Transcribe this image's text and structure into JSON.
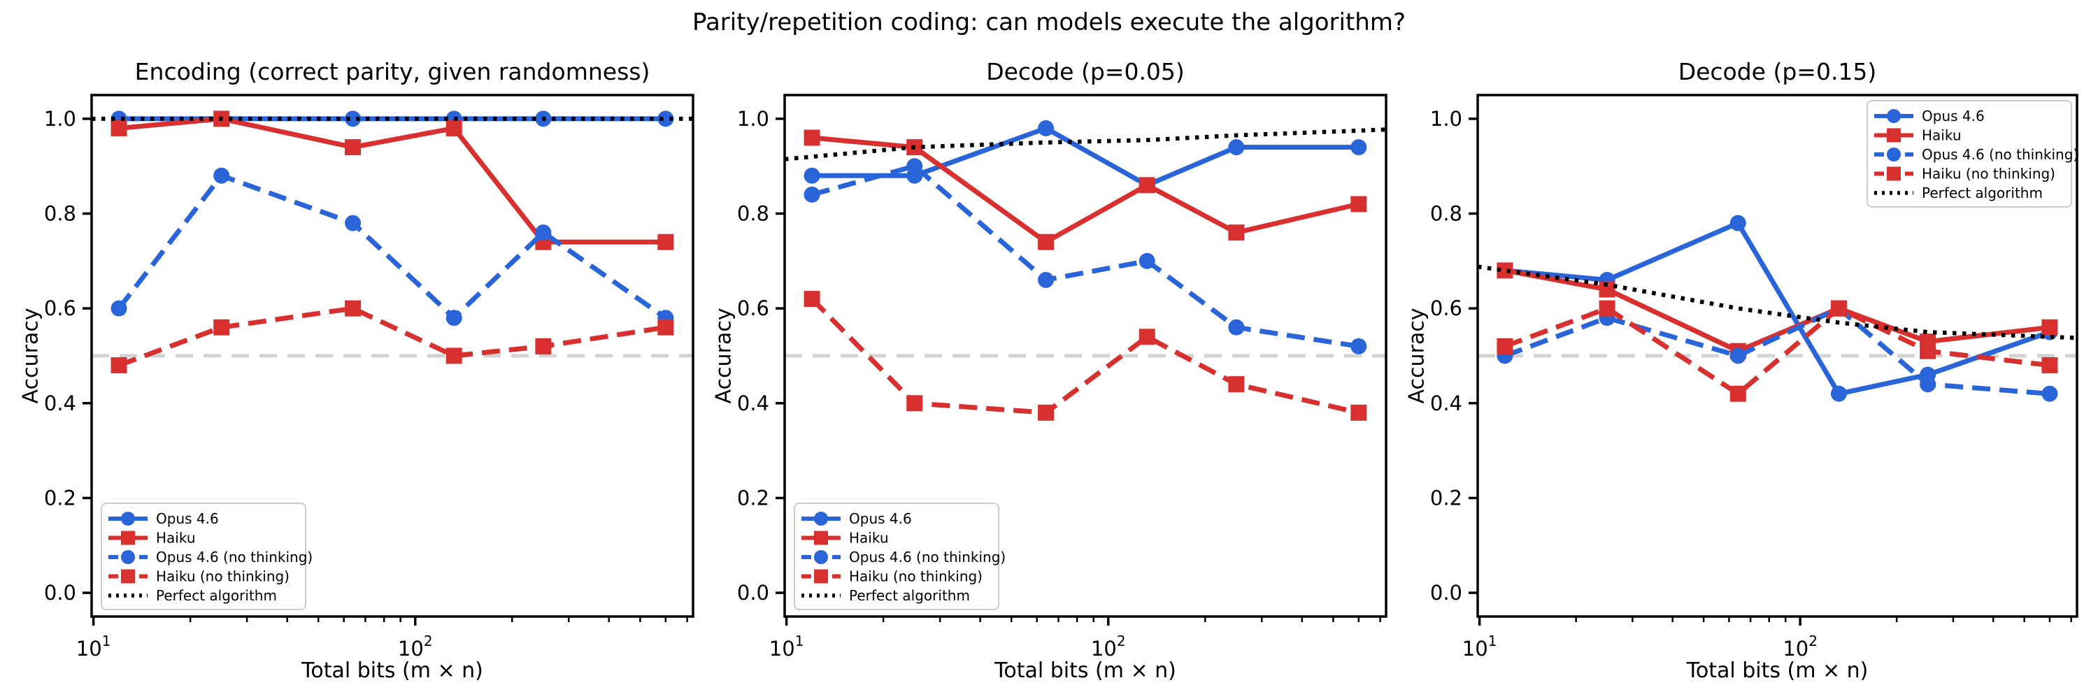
{
  "figure": {
    "suptitle": "Parity/repetition coding: can models execute the algorithm?",
    "background": "#ffffff"
  },
  "styles": {
    "opus_color": "#2965d8",
    "haiku_color": "#d8302f",
    "perfect_color": "#000000",
    "chance_color": "#d3d3d3",
    "axis_color": "#000000",
    "legend_border_color": "#cccccc"
  },
  "chart_data": [
    {
      "type": "line",
      "title": "Encoding (correct parity, given randomness)",
      "xlabel": "Total bits (m × n)",
      "ylabel": "Accuracy",
      "xscale": "log",
      "grid": false,
      "xlim": [
        9.87,
        730
      ],
      "ylim": [
        -0.05,
        1.05
      ],
      "x": [
        12,
        25,
        64,
        132,
        250,
        600
      ],
      "xticks": [
        {
          "v": 10,
          "base": "10",
          "exp": "1"
        },
        {
          "v": 100,
          "base": "10",
          "exp": "2"
        }
      ],
      "xminorticks": [
        20,
        30,
        40,
        50,
        60,
        70,
        80,
        90,
        200,
        300,
        400,
        500,
        600,
        700
      ],
      "yticks": [
        "0.0",
        "0.2",
        "0.4",
        "0.6",
        "0.8",
        "1.0"
      ],
      "chance_line_y": 0.5,
      "legend_loc": "lower-left",
      "series": [
        {
          "name": "Opus 4.6",
          "color_key": "opus",
          "line": "solid",
          "marker": "circle",
          "values": [
            1.0,
            1.0,
            1.0,
            1.0,
            1.0,
            1.0
          ]
        },
        {
          "name": "Haiku",
          "color_key": "haiku",
          "line": "solid",
          "marker": "square",
          "values": [
            0.98,
            1.0,
            0.94,
            0.98,
            0.74,
            0.74
          ]
        },
        {
          "name": "Opus 4.6 (no thinking)",
          "color_key": "opus",
          "line": "dashed",
          "marker": "circle",
          "values": [
            0.6,
            0.88,
            0.78,
            0.58,
            0.76,
            0.58
          ]
        },
        {
          "name": "Haiku (no thinking)",
          "color_key": "haiku",
          "line": "dashed",
          "marker": "square",
          "values": [
            0.48,
            0.56,
            0.6,
            0.5,
            0.52,
            0.56
          ]
        },
        {
          "name": "Perfect algorithm",
          "color_key": "perfect",
          "line": "dotted",
          "marker": "none",
          "values": [
            1.0,
            1.0,
            1.0,
            1.0,
            1.0,
            1.0
          ]
        }
      ]
    },
    {
      "type": "line",
      "title": "Decode (p=0.05)",
      "xlabel": "Total bits (m × n)",
      "ylabel": "Accuracy",
      "xscale": "log",
      "grid": false,
      "xlim": [
        9.87,
        730
      ],
      "ylim": [
        -0.05,
        1.05
      ],
      "x": [
        12,
        25,
        64,
        132,
        250,
        600
      ],
      "xticks": [
        {
          "v": 10,
          "base": "10",
          "exp": "1"
        },
        {
          "v": 100,
          "base": "10",
          "exp": "2"
        }
      ],
      "xminorticks": [
        20,
        30,
        40,
        50,
        60,
        70,
        80,
        90,
        200,
        300,
        400,
        500,
        600,
        700
      ],
      "yticks": [
        "0.0",
        "0.2",
        "0.4",
        "0.6",
        "0.8",
        "1.0"
      ],
      "chance_line_y": 0.5,
      "legend_loc": "lower-left",
      "series": [
        {
          "name": "Opus 4.6",
          "color_key": "opus",
          "line": "solid",
          "marker": "circle",
          "values": [
            0.88,
            0.88,
            0.98,
            0.86,
            0.94,
            0.94
          ]
        },
        {
          "name": "Haiku",
          "color_key": "haiku",
          "line": "solid",
          "marker": "square",
          "values": [
            0.96,
            0.94,
            0.74,
            0.86,
            0.76,
            0.82
          ]
        },
        {
          "name": "Opus 4.6 (no thinking)",
          "color_key": "opus",
          "line": "dashed",
          "marker": "circle",
          "values": [
            0.84,
            0.9,
            0.66,
            0.7,
            0.56,
            0.52
          ]
        },
        {
          "name": "Haiku (no thinking)",
          "color_key": "haiku",
          "line": "dashed",
          "marker": "square",
          "values": [
            0.62,
            0.4,
            0.38,
            0.54,
            0.44,
            0.38
          ]
        },
        {
          "name": "Perfect algorithm",
          "color_key": "perfect",
          "line": "dotted",
          "marker": "none",
          "values": [
            0.92,
            0.94,
            0.95,
            0.955,
            0.965,
            0.975
          ]
        }
      ]
    },
    {
      "type": "line",
      "title": "Decode (p=0.15)",
      "xlabel": "Total bits (m × n)",
      "ylabel": "Accuracy",
      "xscale": "log",
      "grid": false,
      "xlim": [
        9.87,
        730
      ],
      "ylim": [
        -0.05,
        1.05
      ],
      "x": [
        12,
        25,
        64,
        132,
        250,
        600
      ],
      "xticks": [
        {
          "v": 10,
          "base": "10",
          "exp": "1"
        },
        {
          "v": 100,
          "base": "10",
          "exp": "2"
        }
      ],
      "xminorticks": [
        20,
        30,
        40,
        50,
        60,
        70,
        80,
        90,
        200,
        300,
        400,
        500,
        600,
        700
      ],
      "yticks": [
        "0.0",
        "0.2",
        "0.4",
        "0.6",
        "0.8",
        "1.0"
      ],
      "chance_line_y": 0.5,
      "legend_loc": "upper-right",
      "series": [
        {
          "name": "Opus 4.6",
          "color_key": "opus",
          "line": "solid",
          "marker": "circle",
          "values": [
            0.68,
            0.66,
            0.78,
            0.42,
            0.46,
            0.55
          ]
        },
        {
          "name": "Haiku",
          "color_key": "haiku",
          "line": "solid",
          "marker": "square",
          "values": [
            0.68,
            0.64,
            0.51,
            0.6,
            0.53,
            0.56
          ]
        },
        {
          "name": "Opus 4.6 (no thinking)",
          "color_key": "opus",
          "line": "dashed",
          "marker": "circle",
          "values": [
            0.5,
            0.58,
            0.5,
            0.6,
            0.44,
            0.42
          ]
        },
        {
          "name": "Haiku (no thinking)",
          "color_key": "haiku",
          "line": "dashed",
          "marker": "square",
          "values": [
            0.52,
            0.6,
            0.42,
            0.6,
            0.51,
            0.48
          ]
        },
        {
          "name": "Perfect algorithm",
          "color_key": "perfect",
          "line": "dotted",
          "marker": "none",
          "values": [
            0.68,
            0.65,
            0.6,
            0.57,
            0.55,
            0.54
          ]
        }
      ]
    }
  ]
}
